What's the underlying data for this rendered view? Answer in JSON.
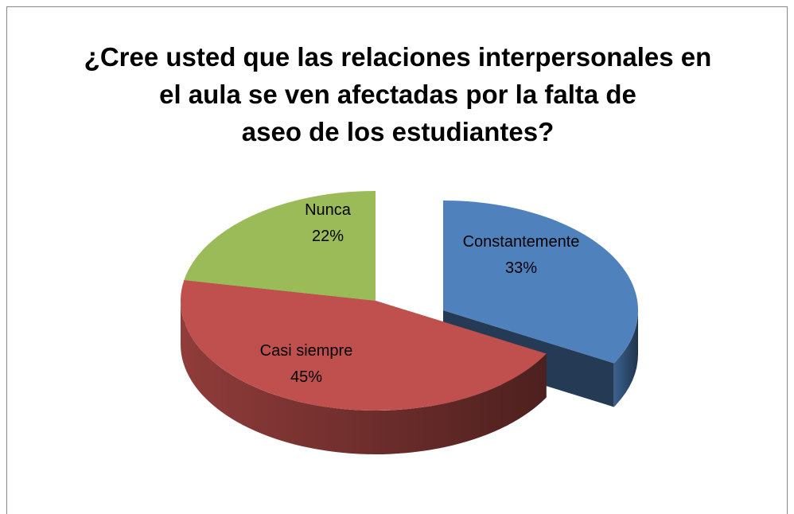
{
  "chart_data": {
    "type": "pie3d",
    "title": "¿Cree usted que las relaciones interpersonales en el aula se ven afectadas por la falta de aseo de los estudiantes?",
    "categories": [
      "Constantemente",
      "Casi siempre",
      "Nunca"
    ],
    "values": [
      33,
      45,
      22
    ],
    "value_labels": [
      "33%",
      "45%",
      "22%"
    ],
    "colors": [
      "#4f81bd",
      "#c0504d",
      "#9bbb59"
    ],
    "exploded": [
      true,
      false,
      false
    ]
  }
}
